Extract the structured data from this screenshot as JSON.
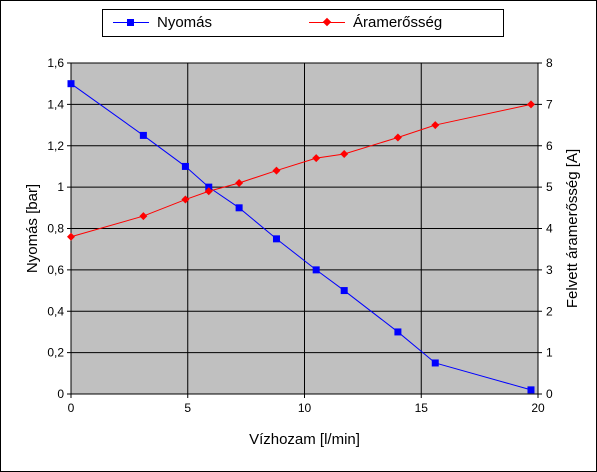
{
  "chart_data": {
    "type": "line",
    "xlabel": "Vízhozam [l/min]",
    "ylabel": "Nyomás [bar]",
    "y2label": "Felvett áramerősség [A]",
    "xlim": [
      0,
      20
    ],
    "ylim": [
      0,
      1.6
    ],
    "y2lim": [
      0,
      8
    ],
    "x_ticks": [
      "0",
      "5",
      "10",
      "15",
      "20"
    ],
    "y_ticks": [
      "0",
      "0,2",
      "0,4",
      "0,6",
      "0,8",
      "1",
      "1,2",
      "1,4",
      "1,6"
    ],
    "y2_ticks": [
      "0",
      "1",
      "2",
      "3",
      "4",
      "5",
      "6",
      "7",
      "8"
    ],
    "grid": true,
    "legend_position": "top",
    "plot_background": "#c0c0c0",
    "series": [
      {
        "name": "Nyomás",
        "axis": "left",
        "color": "#0000ff",
        "marker": "square",
        "x": [
          0,
          3.1,
          4.9,
          5.9,
          7.2,
          8.8,
          10.5,
          11.7,
          14.0,
          15.6,
          19.7
        ],
        "y": [
          1.5,
          1.25,
          1.1,
          1.0,
          0.9,
          0.75,
          0.6,
          0.5,
          0.3,
          0.15,
          0.02
        ]
      },
      {
        "name": "Áramerősség",
        "axis": "right",
        "color": "#ff0000",
        "marker": "diamond",
        "x": [
          0,
          3.1,
          4.9,
          5.9,
          7.2,
          8.8,
          10.5,
          11.7,
          14.0,
          15.6,
          19.7
        ],
        "y": [
          3.8,
          4.3,
          4.7,
          4.9,
          5.1,
          5.4,
          5.7,
          5.8,
          6.2,
          6.5,
          7.0
        ]
      }
    ]
  }
}
